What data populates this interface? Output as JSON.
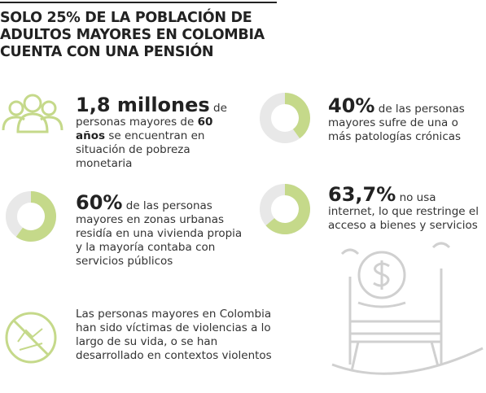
{
  "header": {
    "title_lines": [
      "SOLO 25% DE LA POBLACIÓN DE",
      "ADULTOS MAYORES EN COLOMBIA",
      "CUENTA CON UNA PENSIÓN"
    ]
  },
  "poverty": {
    "lead": "1,8 millones",
    "text": "de personas mayores de",
    "emphasis": "60 años",
    "text_end": "se encuentran en situación de pobreza monetaria"
  },
  "donuts": [
    {
      "value": 60,
      "value_label": "60%",
      "text": "de las personas mayores en zonas urbanas residía en una vivienda propia y la mayoría contaba con servicios públicos"
    },
    {
      "value": 40,
      "value_label": "40%",
      "text": "de las personas mayores sufre de una o más patologías crónicas"
    },
    {
      "value": 63.7,
      "value_label": "63,7%",
      "text": "no usa internet, lo que restringe el acceso a bienes y servicios"
    }
  ],
  "violence": {
    "text": "Las personas mayores en Colombia han sido víctimas de violencias a lo largo de su vida, o se han desarrollado en contextos violentos"
  }
}
